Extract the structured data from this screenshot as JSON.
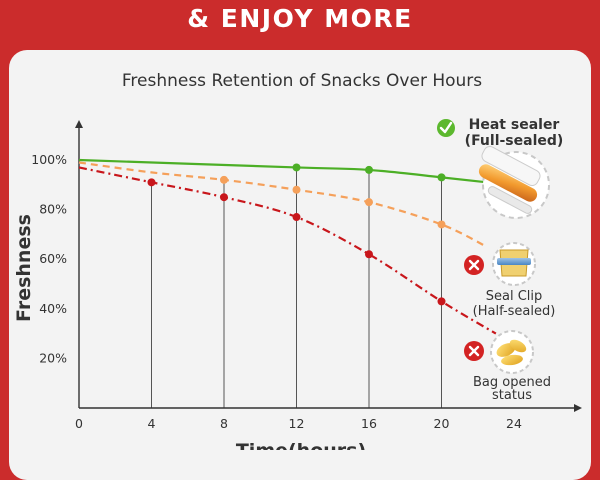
{
  "headline": "& ENJOY MORE",
  "chart_data": {
    "type": "line",
    "title": "Freshness Retention of Snacks Over Hours",
    "xlabel": "Time(hours)",
    "ylabel": "Freshness",
    "x_ticks": [
      "0",
      "4",
      "8",
      "12",
      "16",
      "20",
      "24"
    ],
    "y_ticks": [
      "20%",
      "40%",
      "60%",
      "80%",
      "100%"
    ],
    "xlim": [
      0,
      24
    ],
    "ylim": [
      0,
      100
    ],
    "grid": "vertical lines at marker points",
    "series": [
      {
        "name": "Heat sealer (Full-sealed)",
        "color": "#4caf26",
        "style": "solid",
        "x": [
          0,
          12,
          16,
          20,
          22.5
        ],
        "y": [
          100,
          97,
          96,
          93,
          91
        ],
        "markers_x": [
          12,
          16,
          20
        ]
      },
      {
        "name": "Seal Clip (Half-sealed)",
        "color": "#f5a05a",
        "style": "dashed",
        "x": [
          0,
          4,
          8,
          12,
          16,
          20,
          22.5
        ],
        "y": [
          99,
          95,
          92,
          88,
          83,
          74,
          65
        ],
        "markers_x": [
          8,
          12,
          16,
          20
        ]
      },
      {
        "name": "Bag opened status",
        "color": "#c8161b",
        "style": "dash-dot",
        "x": [
          0,
          4,
          8,
          12,
          16,
          20,
          23
        ],
        "y": [
          97,
          91,
          85,
          77,
          62,
          43,
          30
        ],
        "markers_x": [
          4,
          8,
          12,
          16,
          20
        ]
      }
    ]
  },
  "legend": {
    "heat_line1": "Heat sealer",
    "heat_line2": "(Full-sealed)",
    "clip_line1": "Seal Clip",
    "clip_line2": "(Half-sealed)",
    "bag_line1": "Bag opened",
    "bag_line2": "status"
  }
}
